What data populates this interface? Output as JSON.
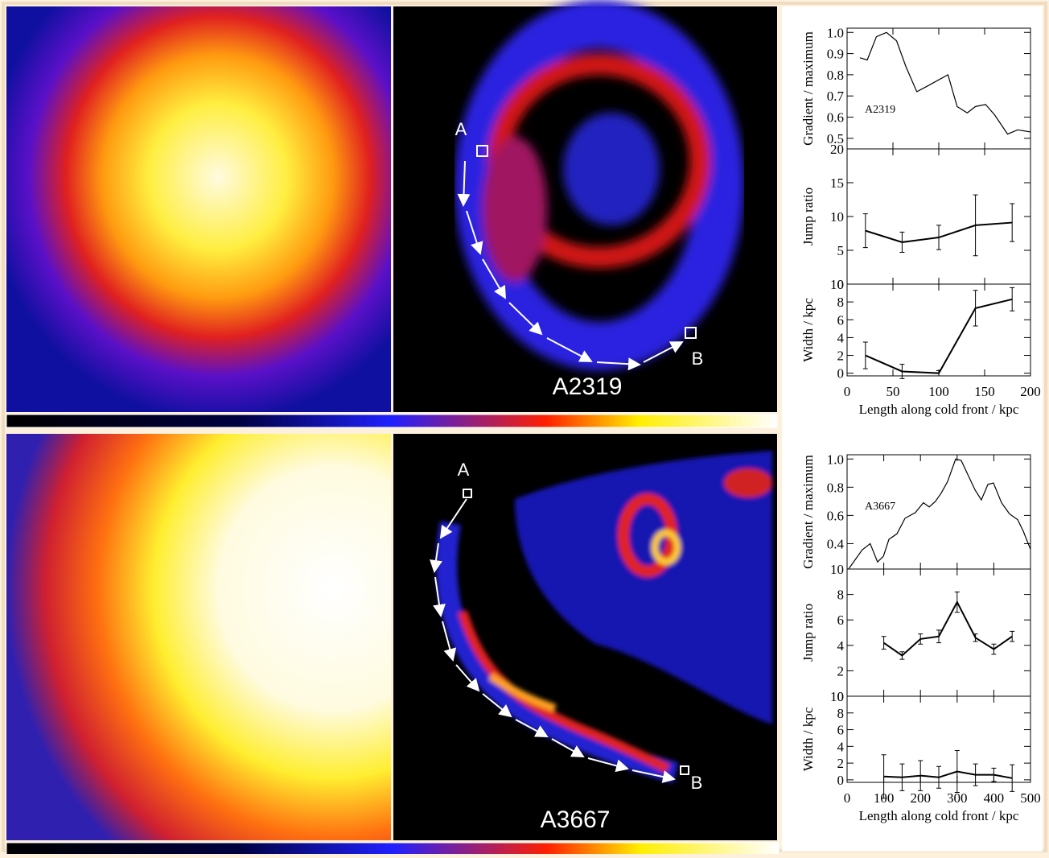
{
  "images": [
    {
      "cluster": "A2319",
      "start": "A",
      "end": "B"
    },
    {
      "cluster": "A3667",
      "start": "A",
      "end": "B"
    }
  ],
  "chart_data": [
    {
      "type": "line",
      "ylabel": "Gradient / maximum",
      "annotation": "A2319",
      "color": "#000000",
      "x": [
        14,
        22,
        32,
        43,
        54,
        64,
        76,
        89,
        110,
        120,
        131,
        140,
        151,
        161,
        175,
        186,
        200
      ],
      "values": [
        0.88,
        0.87,
        0.98,
        1.0,
        0.96,
        0.84,
        0.72,
        0.75,
        0.8,
        0.65,
        0.62,
        0.65,
        0.66,
        0.61,
        0.52,
        0.54,
        0.53
      ],
      "xlim": [
        0,
        200
      ],
      "ylim": [
        0.45,
        1.02
      ],
      "yticks": [
        {
          "value": 1,
          "label": "1.0"
        },
        0.9,
        0.8,
        0.7,
        0.6,
        0.5
      ]
    },
    {
      "type": "errorbar",
      "ylabel": "Jump ratio",
      "color": "#000000",
      "x": [
        20,
        60,
        100,
        140,
        180
      ],
      "values": [
        7.9,
        6.2,
        6.9,
        8.7,
        9.1
      ],
      "errors": [
        2.5,
        1.5,
        1.8,
        4.5,
        2.8
      ],
      "xlim": [
        0,
        200
      ],
      "ylim": [
        0,
        20
      ],
      "yticks": [
        0,
        5,
        10,
        15,
        20
      ]
    },
    {
      "type": "errorbar",
      "ylabel": "Width / kpc",
      "xlabel": "Length along cold front / kpc",
      "color": "#000000",
      "x": [
        20,
        60,
        100,
        140,
        180
      ],
      "values": [
        2.0,
        0.2,
        0.0,
        7.3,
        8.3
      ],
      "errors": [
        1.5,
        0.8,
        0.3,
        2.0,
        1.3
      ],
      "xlim": [
        0,
        200
      ],
      "xticks": [
        0,
        50,
        100,
        150,
        200
      ],
      "ylim": [
        -0.3,
        10
      ],
      "yticks": [
        0,
        2,
        4,
        6,
        8,
        10
      ]
    },
    {
      "type": "line",
      "ylabel": "Gradient / maximum",
      "annotation": "A3667",
      "color": "#000000",
      "x": [
        4,
        41,
        63,
        83,
        99,
        114,
        136,
        158,
        186,
        208,
        224,
        241,
        257,
        274,
        296,
        311,
        329,
        349,
        366,
        384,
        399,
        421,
        443,
        465,
        480,
        500
      ],
      "values": [
        0.22,
        0.355,
        0.4,
        0.27,
        0.31,
        0.43,
        0.47,
        0.58,
        0.62,
        0.69,
        0.66,
        0.7,
        0.76,
        0.84,
        1.0,
        0.99,
        0.89,
        0.78,
        0.71,
        0.82,
        0.83,
        0.69,
        0.61,
        0.57,
        0.49,
        0.36
      ],
      "xlim": [
        0,
        500
      ],
      "ylim": [
        0.22,
        1.03
      ],
      "yticks": [
        0.4,
        0.6,
        0.8,
        {
          "value": 1,
          "label": "1.0"
        }
      ]
    },
    {
      "type": "errorbar",
      "ylabel": "Jump ratio",
      "color": "#000000",
      "x": [
        100,
        150,
        200,
        250,
        300,
        350,
        400,
        450
      ],
      "values": [
        4.2,
        3.2,
        4.5,
        4.7,
        7.4,
        4.6,
        3.7,
        4.7
      ],
      "errors": [
        0.5,
        0.3,
        0.4,
        0.5,
        0.8,
        0.3,
        0.4,
        0.4
      ],
      "xlim": [
        0,
        500
      ],
      "ylim": [
        0,
        10
      ],
      "yticks": [
        0,
        2,
        4,
        6,
        8,
        10
      ]
    },
    {
      "type": "errorbar",
      "ylabel": "Width / kpc",
      "xlabel": "Length along cold front / kpc",
      "color": "#000000",
      "x": [
        100,
        150,
        200,
        250,
        300,
        350,
        400,
        450
      ],
      "values": [
        0.4,
        0.3,
        0.5,
        0.3,
        1.0,
        0.6,
        0.6,
        0.2
      ],
      "errors": [
        2.6,
        1.6,
        1.8,
        1.3,
        2.5,
        1.3,
        0.8,
        1.6
      ],
      "xlim": [
        0,
        500
      ],
      "xticks": [
        0,
        100,
        200,
        300,
        400,
        500
      ],
      "ylim": [
        -0.3,
        10
      ],
      "yticks": [
        0,
        2,
        4,
        6,
        8,
        10
      ]
    }
  ]
}
